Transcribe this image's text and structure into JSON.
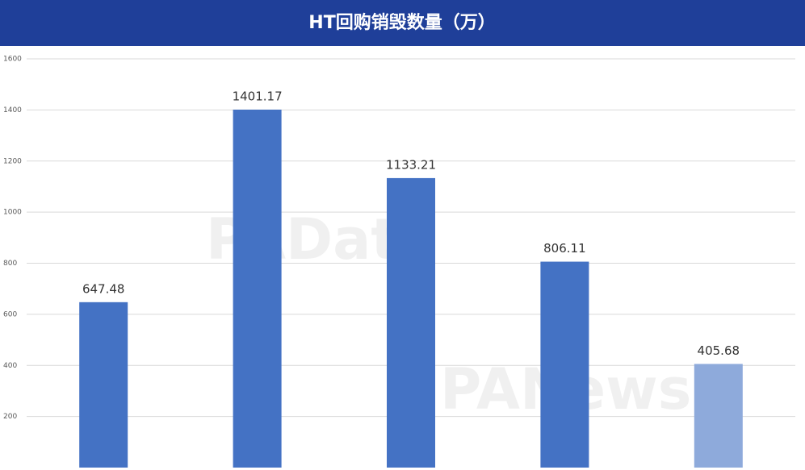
{
  "chart_data": {
    "type": "bar",
    "title": "HT回购销毁数量（万）",
    "values": [
      647.48,
      1401.17,
      1133.21,
      806.11,
      405.68
    ],
    "colors": [
      "#4472c4",
      "#4472c4",
      "#4472c4",
      "#4472c4",
      "#8eaadb"
    ],
    "ylim": [
      0,
      1600
    ],
    "yticks": [
      200,
      400,
      600,
      800,
      1000,
      1200,
      1400,
      1600
    ],
    "grid": true,
    "watermarks": [
      "PAData",
      "PANews"
    ]
  }
}
